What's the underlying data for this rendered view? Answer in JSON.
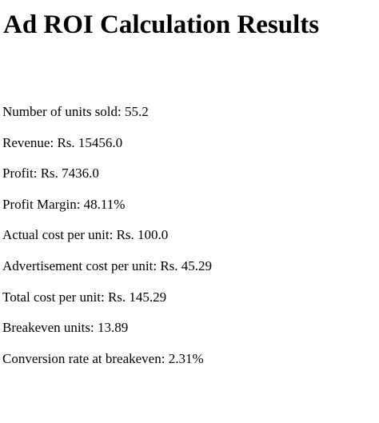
{
  "header": {
    "title": "Ad ROI Calculation Results"
  },
  "results": [
    "Number of units sold: 55.2",
    "Revenue: Rs. 15456.0",
    "Profit: Rs. 7436.0",
    "Profit Margin: 48.11%",
    "Actual cost per unit: Rs. 100.0",
    "Advertisement cost per unit: Rs. 45.29",
    "Total cost per unit: Rs. 145.29",
    "Breakeven units: 13.89",
    "Conversion rate at breakeven: 2.31%"
  ]
}
